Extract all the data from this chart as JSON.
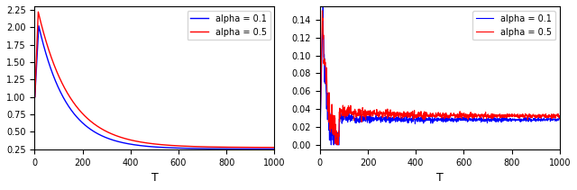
{
  "alpha1": 0.1,
  "alpha2": 0.5,
  "color1": "#0000ff",
  "color2": "#ff0000",
  "xlabel": "T",
  "legend_labels": [
    "alpha = 0.1",
    "alpha = 0.5"
  ],
  "left_yticks": [
    0.25,
    0.5,
    0.75,
    1.0,
    1.25,
    1.5,
    1.75,
    2.0,
    2.25
  ],
  "left_ylim": [
    0.25,
    2.3
  ],
  "right_yticks": [
    0.0,
    0.02,
    0.04,
    0.06,
    0.08,
    0.1,
    0.12,
    0.14
  ],
  "right_ylim": [
    -0.005,
    0.155
  ],
  "T": 1000
}
